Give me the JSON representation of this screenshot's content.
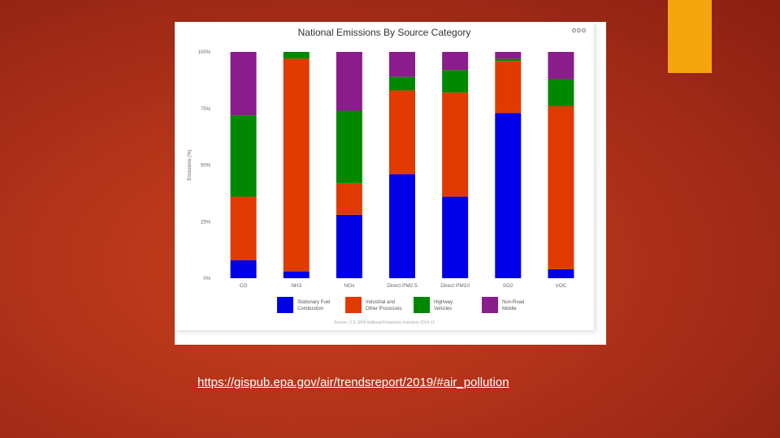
{
  "slide": {
    "link_text": "https://gispub.epa.gov/air/trendsreport/2019/#air_pollution",
    "accent_color": "#f5a60e"
  },
  "chart_header": {
    "menu_icon": "ellipsis-icon",
    "menu_glyph": "ooo"
  },
  "chart_data": {
    "type": "bar",
    "stacked": true,
    "title": "National Emissions By Source Category",
    "ylabel": "Emissions (%)",
    "xlabel": "",
    "ylim": [
      0,
      100
    ],
    "yticks": [
      "0%",
      "25%",
      "50%",
      "75%",
      "100%"
    ],
    "categories": [
      "CO",
      "NH3",
      "NOx",
      "Direct PM2.5",
      "Direct PM10",
      "SO2",
      "VOC"
    ],
    "series": [
      {
        "name": "Stationary Fuel Combustion",
        "color": "#0000e6",
        "values": [
          8,
          3,
          28,
          46,
          36,
          73,
          4
        ]
      },
      {
        "name": "Industrial and Other Processes",
        "color": "#e03a00",
        "values": [
          28,
          94,
          14,
          37,
          46,
          23,
          72
        ]
      },
      {
        "name": "Highway Vehicles",
        "color": "#008800",
        "values": [
          36,
          3,
          32,
          6,
          10,
          1,
          12
        ]
      },
      {
        "name": "Non-Road Mobile",
        "color": "#8a1c8c",
        "values": [
          28,
          0,
          26,
          11,
          8,
          3,
          12
        ]
      }
    ],
    "legend_position": "bottom",
    "source": "Source: U.S. EPA National Emissions Inventory 2014 v2",
    "grid": false
  }
}
